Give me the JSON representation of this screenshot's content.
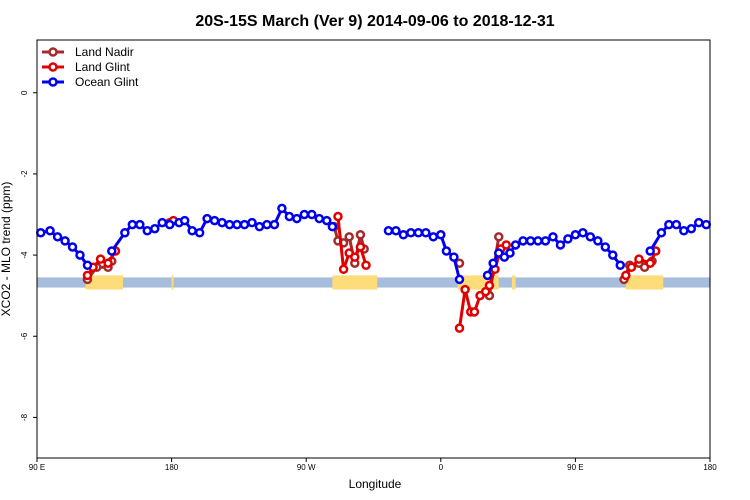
{
  "chart_data": {
    "type": "line",
    "title": "20S-15S March (Ver 9)   2014-09-06 to 2018-12-31",
    "xlabel": "Longitude",
    "ylabel": "XCO2 - MLO trend (ppm)",
    "xlim": [
      0,
      360
    ],
    "ylim": [
      -9,
      1.3
    ],
    "x_ticks": [
      {
        "pos": 0,
        "label": "90 E"
      },
      {
        "pos": 72,
        "label": "180"
      },
      {
        "pos": 144,
        "label": "90 W"
      },
      {
        "pos": 216,
        "label": "0"
      },
      {
        "pos": 288,
        "label": "90 E"
      },
      {
        "pos": 360,
        "label": "180"
      }
    ],
    "y_ticks": [
      {
        "pos": 0,
        "label": "0"
      },
      {
        "pos": -2,
        "label": "-2"
      },
      {
        "pos": -4,
        "label": "-4"
      },
      {
        "pos": -6,
        "label": "-6"
      },
      {
        "pos": -8,
        "label": "-8"
      }
    ],
    "legend_position": "top-left",
    "surface_band": {
      "y_top": -4.55,
      "y_bottom": -4.8,
      "ocean_color": "#a6bddb",
      "land_color": "#fedc7a",
      "land_segments": [
        [
          26,
          46
        ],
        [
          72,
          73
        ],
        [
          158,
          182
        ],
        [
          225,
          247
        ],
        [
          254,
          256
        ],
        [
          315,
          335
        ]
      ]
    },
    "series": [
      {
        "name": "Land Nadir",
        "color": "#a52a2a",
        "points": [
          [
            27,
            -4.6
          ],
          [
            32,
            -4.3
          ],
          [
            38,
            -4.3
          ],
          [
            40,
            -4.15
          ],
          [
            71,
            -3.2
          ],
          [
            159,
            -3.3
          ],
          [
            161,
            -3.65
          ],
          [
            164,
            -3.7
          ],
          [
            167,
            -3.55
          ],
          [
            170,
            -4.2
          ],
          [
            173,
            -3.5
          ],
          [
            175,
            -3.85
          ],
          [
            226,
            -4.2
          ],
          [
            242,
            -5.0
          ],
          [
            247,
            -3.55
          ],
          [
            314,
            -4.6
          ],
          [
            317,
            -4.25
          ],
          [
            322,
            -4.2
          ],
          [
            325,
            -4.3
          ],
          [
            329,
            -4.15
          ]
        ]
      },
      {
        "name": "Land Glint",
        "color": "#e00000",
        "points": [
          [
            27,
            -4.5
          ],
          [
            30,
            -4.3
          ],
          [
            34,
            -4.1
          ],
          [
            38,
            -4.2
          ],
          [
            42,
            -3.9
          ],
          [
            73,
            -3.15
          ],
          [
            161,
            -3.05
          ],
          [
            164,
            -4.35
          ],
          [
            167,
            -3.95
          ],
          [
            170,
            -4.05
          ],
          [
            173,
            -3.8
          ],
          [
            176,
            -4.25
          ],
          [
            226,
            -5.8
          ],
          [
            229,
            -4.85
          ],
          [
            232,
            -5.4
          ],
          [
            234,
            -5.4
          ],
          [
            237,
            -5.0
          ],
          [
            240,
            -4.9
          ],
          [
            242,
            -4.75
          ],
          [
            245,
            -4.35
          ],
          [
            248,
            -3.85
          ],
          [
            251,
            -3.75
          ],
          [
            315,
            -4.5
          ],
          [
            318,
            -4.3
          ],
          [
            322,
            -4.1
          ],
          [
            328,
            -4.2
          ],
          [
            331,
            -3.9
          ]
        ]
      },
      {
        "name": "Ocean Glint",
        "color": "#0000ee",
        "points": [
          [
            2,
            -3.45
          ],
          [
            7,
            -3.4
          ],
          [
            11,
            -3.55
          ],
          [
            15,
            -3.65
          ],
          [
            19,
            -3.8
          ],
          [
            23,
            -4.0
          ],
          [
            27,
            -4.25
          ],
          [
            40,
            -3.9
          ],
          [
            47,
            -3.45
          ],
          [
            51,
            -3.25
          ],
          [
            55,
            -3.25
          ],
          [
            59,
            -3.4
          ],
          [
            63,
            -3.35
          ],
          [
            67,
            -3.2
          ],
          [
            71,
            -3.25
          ],
          [
            76,
            -3.2
          ],
          [
            79,
            -3.15
          ],
          [
            83,
            -3.4
          ],
          [
            87,
            -3.45
          ],
          [
            91,
            -3.1
          ],
          [
            95,
            -3.15
          ],
          [
            99,
            -3.2
          ],
          [
            103,
            -3.25
          ],
          [
            107,
            -3.25
          ],
          [
            111,
            -3.25
          ],
          [
            115,
            -3.2
          ],
          [
            119,
            -3.3
          ],
          [
            123,
            -3.25
          ],
          [
            127,
            -3.25
          ],
          [
            131,
            -2.85
          ],
          [
            135,
            -3.05
          ],
          [
            139,
            -3.1
          ],
          [
            143,
            -3.0
          ],
          [
            147,
            -3.0
          ],
          [
            151,
            -3.1
          ],
          [
            155,
            -3.15
          ],
          [
            158,
            -3.3
          ],
          [
            188,
            -3.4
          ],
          [
            192,
            -3.4
          ],
          [
            196,
            -3.5
          ],
          [
            200,
            -3.45
          ],
          [
            204,
            -3.45
          ],
          [
            208,
            -3.45
          ],
          [
            212,
            -3.55
          ],
          [
            216,
            -3.5
          ],
          [
            219,
            -3.9
          ],
          [
            223,
            -4.05
          ],
          [
            226,
            -4.6
          ],
          [
            241,
            -4.5
          ],
          [
            244,
            -4.2
          ],
          [
            247,
            -3.95
          ],
          [
            250,
            -4.05
          ],
          [
            253,
            -3.95
          ],
          [
            256,
            -3.75
          ],
          [
            260,
            -3.65
          ],
          [
            264,
            -3.65
          ],
          [
            268,
            -3.65
          ],
          [
            272,
            -3.65
          ],
          [
            276,
            -3.55
          ],
          [
            280,
            -3.75
          ],
          [
            284,
            -3.6
          ],
          [
            288,
            -3.5
          ],
          [
            292,
            -3.45
          ],
          [
            296,
            -3.55
          ],
          [
            300,
            -3.65
          ],
          [
            304,
            -3.8
          ],
          [
            308,
            -4.0
          ],
          [
            312,
            -4.25
          ],
          [
            328,
            -3.9
          ],
          [
            334,
            -3.45
          ],
          [
            338,
            -3.25
          ],
          [
            342,
            -3.25
          ],
          [
            346,
            -3.4
          ],
          [
            350,
            -3.35
          ],
          [
            354,
            -3.2
          ],
          [
            358,
            -3.25
          ]
        ]
      }
    ]
  }
}
